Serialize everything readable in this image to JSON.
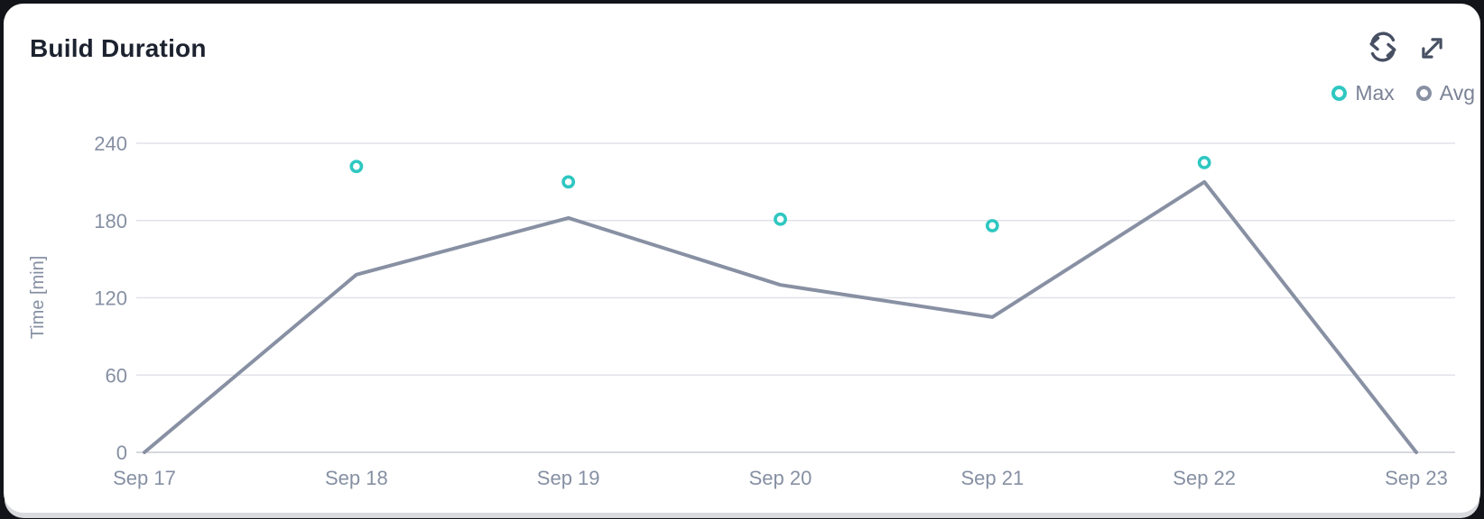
{
  "header": {
    "title": "Build Duration",
    "actions": [
      {
        "icon": "refresh-icon"
      },
      {
        "icon": "expand-icon"
      }
    ]
  },
  "chart_data": {
    "type": "line",
    "title": "Build Duration",
    "categories": [
      "Sep 17",
      "Sep 18",
      "Sep 19",
      "Sep 20",
      "Sep 21",
      "Sep 22",
      "Sep 23"
    ],
    "series": [
      {
        "name": "Max",
        "render": "scatter",
        "color": "#2fc7c1",
        "values": [
          null,
          222,
          210,
          181,
          176,
          225,
          null
        ]
      },
      {
        "name": "Avg",
        "render": "line",
        "color": "#8890a3",
        "values": [
          0,
          138,
          182,
          130,
          105,
          210,
          0
        ]
      }
    ],
    "xlabel": "",
    "ylabel": "Time [min]",
    "yticks": [
      0,
      60,
      120,
      180,
      240
    ],
    "ylim": [
      0,
      252
    ],
    "grid": "horizontal",
    "legend_position": "top-right"
  },
  "colors": {
    "accent_teal": "#2fc7c1",
    "series_gray": "#8890a3",
    "grid_line": "#e1e3e9",
    "zero_line": "#c9ccd4",
    "tick_text": "#8690a3",
    "axis_title_text": "#8690a3",
    "title_text": "#1c222f",
    "icon": "#475063",
    "legend_text": "#7a8295",
    "card_bg": "#ffffff",
    "page_bg": "#131419"
  }
}
